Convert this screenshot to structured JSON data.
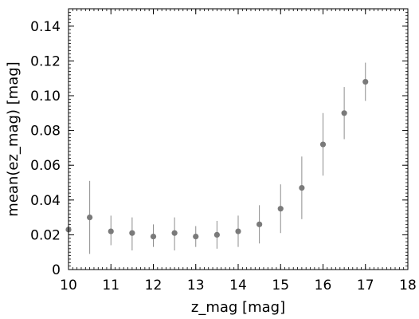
{
  "chart_data": {
    "type": "scatter",
    "title": "",
    "xlabel": "z_mag [mag]",
    "ylabel": "mean(ez_mag) [mag]",
    "xlim": [
      10,
      18
    ],
    "ylim": [
      0,
      0.15
    ],
    "xticks": [
      10,
      11,
      12,
      13,
      14,
      15,
      16,
      17,
      18
    ],
    "xtick_labels": [
      "10",
      "11",
      "12",
      "13",
      "14",
      "15",
      "16",
      "17",
      "18"
    ],
    "yticks": [
      0,
      0.02,
      0.04,
      0.06,
      0.08,
      0.1,
      0.12,
      0.14
    ],
    "ytick_labels": [
      "0",
      "0.02",
      "0.04",
      "0.06",
      "0.08",
      "0.10",
      "0.12",
      "0.14"
    ],
    "x_minor_step": 0.1,
    "y_minor_step": 0.002,
    "grid": false,
    "legend": "none",
    "marker_color": "#7a7a7a",
    "errorbar_color": "#8c8c8c",
    "points": [
      {
        "x": 10.0,
        "y": 0.023,
        "ylow": 0.02,
        "yhigh": 0.026
      },
      {
        "x": 10.5,
        "y": 0.03,
        "ylow": 0.009,
        "yhigh": 0.051
      },
      {
        "x": 11.0,
        "y": 0.022,
        "ylow": 0.014,
        "yhigh": 0.031
      },
      {
        "x": 11.5,
        "y": 0.021,
        "ylow": 0.011,
        "yhigh": 0.03
      },
      {
        "x": 12.0,
        "y": 0.019,
        "ylow": 0.013,
        "yhigh": 0.026
      },
      {
        "x": 12.5,
        "y": 0.021,
        "ylow": 0.011,
        "yhigh": 0.03
      },
      {
        "x": 13.0,
        "y": 0.019,
        "ylow": 0.013,
        "yhigh": 0.025
      },
      {
        "x": 13.5,
        "y": 0.02,
        "ylow": 0.012,
        "yhigh": 0.028
      },
      {
        "x": 14.0,
        "y": 0.022,
        "ylow": 0.013,
        "yhigh": 0.031
      },
      {
        "x": 14.5,
        "y": 0.026,
        "ylow": 0.015,
        "yhigh": 0.037
      },
      {
        "x": 15.0,
        "y": 0.035,
        "ylow": 0.021,
        "yhigh": 0.049
      },
      {
        "x": 15.5,
        "y": 0.047,
        "ylow": 0.029,
        "yhigh": 0.065
      },
      {
        "x": 16.0,
        "y": 0.072,
        "ylow": 0.054,
        "yhigh": 0.09
      },
      {
        "x": 16.5,
        "y": 0.09,
        "ylow": 0.075,
        "yhigh": 0.105
      },
      {
        "x": 17.0,
        "y": 0.108,
        "ylow": 0.097,
        "yhigh": 0.119
      }
    ]
  }
}
